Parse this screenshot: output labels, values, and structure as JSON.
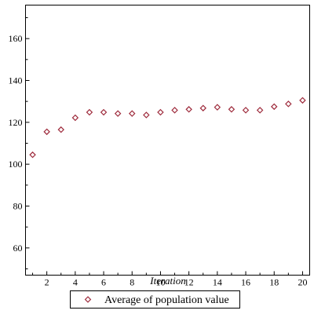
{
  "chart_data": {
    "type": "scatter",
    "title": "",
    "xlabel": "Iteration",
    "ylabel": "",
    "xlim": [
      0.5,
      20.5
    ],
    "ylim": [
      47,
      176
    ],
    "x_ticks": [
      2,
      4,
      6,
      8,
      10,
      12,
      14,
      16,
      18,
      20
    ],
    "y_ticks": [
      60,
      80,
      100,
      120,
      140,
      160
    ],
    "grid": false,
    "legend_position": "bottom",
    "series": [
      {
        "name": "Average of population value",
        "marker": "diamond-open",
        "color": "#9e2b3c",
        "x": [
          1,
          2,
          3,
          4,
          5,
          6,
          7,
          8,
          9,
          10,
          11,
          12,
          13,
          14,
          15,
          16,
          17,
          18,
          19,
          20
        ],
        "y": [
          104.5,
          115.5,
          116.5,
          122.2,
          124.8,
          124.8,
          124.2,
          124.2,
          123.5,
          124.8,
          125.8,
          126.2,
          126.8,
          127.2,
          126.2,
          125.8,
          125.8,
          127.5,
          128.8,
          130.5
        ]
      }
    ]
  }
}
